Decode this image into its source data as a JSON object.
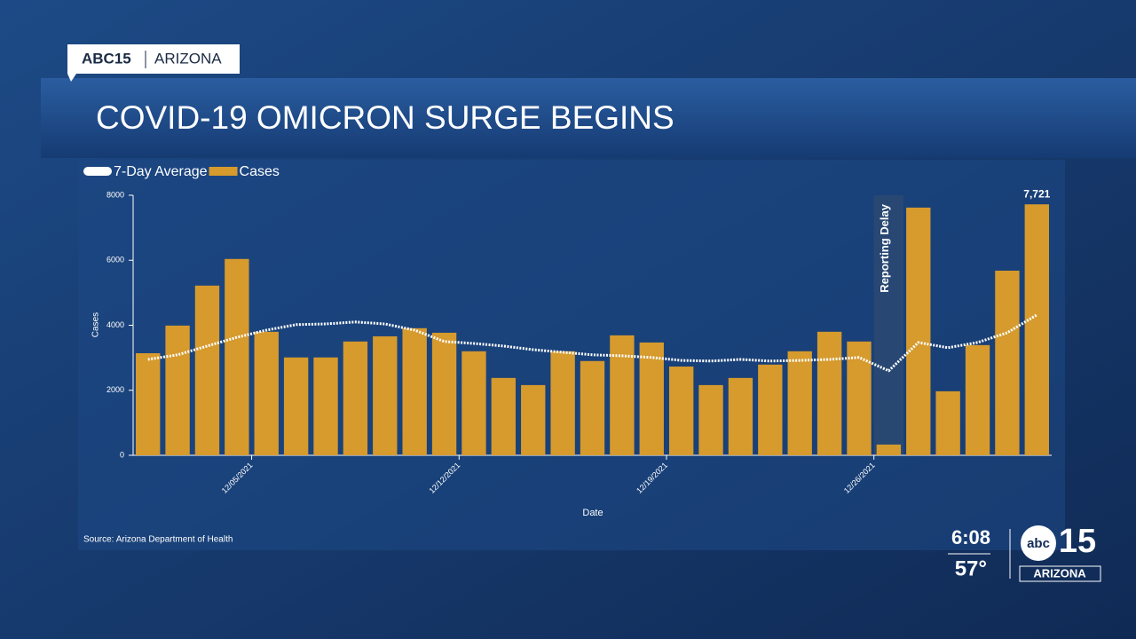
{
  "header": {
    "brand": "ABC15",
    "region": "ARIZONA",
    "title": "COVID-19 OMICRON SURGE BEGINS"
  },
  "chart_data": {
    "type": "bar",
    "x_label": "Date",
    "y_label": "Cases",
    "source": "Source: Arizona Department of Health",
    "annotation": "Reporting Delay",
    "categories": [
      null,
      null,
      null,
      null,
      "12/05/2021",
      null,
      null,
      null,
      null,
      null,
      null,
      "12/12/2021",
      null,
      null,
      null,
      null,
      null,
      null,
      "12/19/2021",
      null,
      null,
      null,
      null,
      null,
      null,
      "12/26/2021",
      null,
      null,
      null,
      null,
      null
    ],
    "series": [
      {
        "name": "7-Day Average",
        "type": "line",
        "color": "#ffffff",
        "values": [
          2950,
          3090,
          3360,
          3630,
          3850,
          4020,
          4040,
          4100,
          4040,
          3850,
          3500,
          3440,
          3360,
          3250,
          3170,
          3090,
          3060,
          3010,
          2920,
          2900,
          2950,
          2900,
          2920,
          2950,
          3010,
          2600,
          3470,
          3310,
          3470,
          3770,
          4320
        ]
      },
      {
        "name": "Cases",
        "type": "bar",
        "color": "#d69a2d",
        "values": [
          3140,
          3990,
          5220,
          6040,
          3800,
          3010,
          3010,
          3500,
          3660,
          3910,
          3770,
          3200,
          2380,
          2160,
          3200,
          2900,
          3690,
          3470,
          2730,
          2160,
          2380,
          2790,
          3200,
          3800,
          3500,
          330,
          7620,
          1970,
          3390,
          5680,
          7721
        ],
        "value_labels": [
          null,
          null,
          null,
          null,
          null,
          null,
          null,
          null,
          null,
          null,
          null,
          null,
          null,
          null,
          null,
          null,
          null,
          null,
          null,
          null,
          null,
          null,
          null,
          null,
          null,
          null,
          null,
          null,
          null,
          null,
          "7,721"
        ]
      }
    ],
    "ylim": [
      0,
      8000
    ],
    "yticks": [
      0,
      2000,
      4000,
      6000,
      8000
    ],
    "grid": false,
    "legend": "top-left"
  },
  "ticker": {
    "time": "6:08",
    "temperature": "57°",
    "logo_text": "abc",
    "logo_number": "15",
    "logo_region": "ARIZONA"
  }
}
